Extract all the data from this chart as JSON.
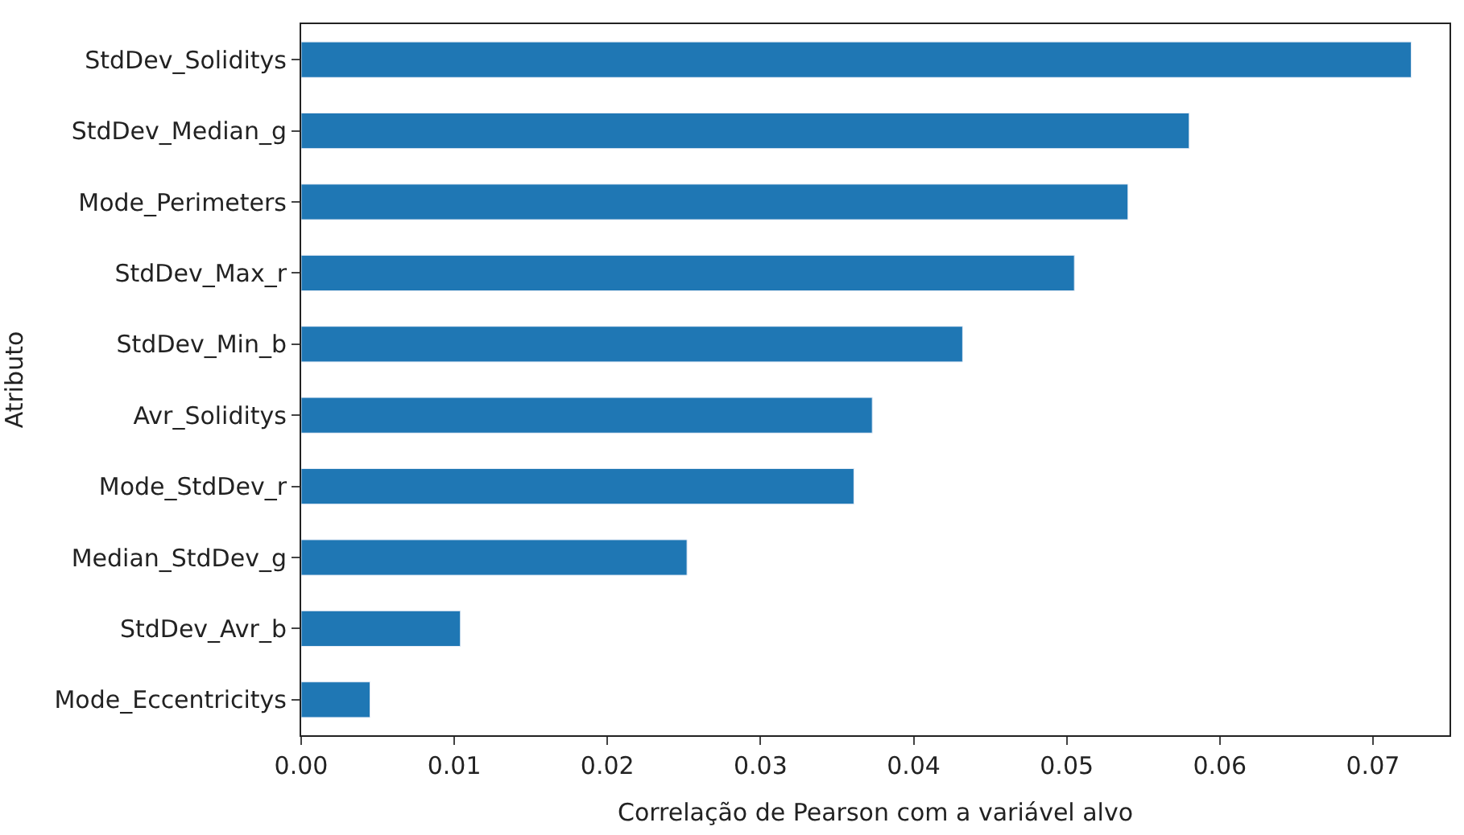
{
  "chart_data": {
    "type": "bar",
    "orientation": "horizontal",
    "xlabel": "Correlação de Pearson com a variável alvo",
    "ylabel": "Atributo",
    "categories": [
      "StdDev_Soliditys",
      "StdDev_Median_g",
      "Mode_Perimeters",
      "StdDev_Max_r",
      "StdDev_Min_b",
      "Avr_Soliditys",
      "Mode_StdDev_r",
      "Median_StdDev_g",
      "StdDev_Avr_b",
      "Mode_Eccentricitys"
    ],
    "values": [
      0.0725,
      0.058,
      0.054,
      0.0505,
      0.0432,
      0.0373,
      0.0361,
      0.0252,
      0.0104,
      0.0045
    ],
    "color": "#1f77b4",
    "xlim": [
      0,
      0.075
    ],
    "xticks": [
      {
        "value": 0,
        "label": "0.00"
      },
      {
        "value": 0.01,
        "label": "0.01"
      },
      {
        "value": 0.02,
        "label": "0.02"
      },
      {
        "value": 0.03,
        "label": "0.03"
      },
      {
        "value": 0.04,
        "label": "0.04"
      },
      {
        "value": 0.05,
        "label": "0.05"
      },
      {
        "value": 0.06,
        "label": "0.06"
      },
      {
        "value": 0.07,
        "label": "0.07"
      }
    ],
    "legend": false
  }
}
